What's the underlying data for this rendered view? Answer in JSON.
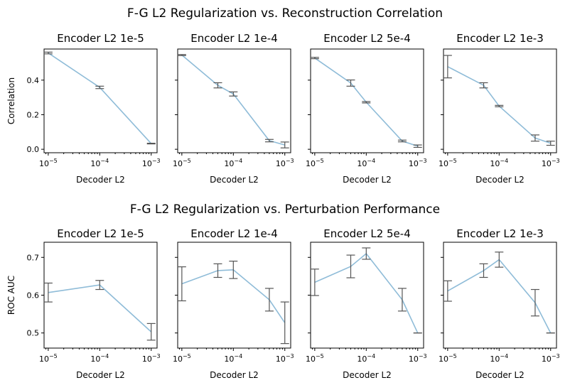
{
  "chart_data": [
    {
      "type": "line",
      "row_title": "F-G L2 Regularization vs. Reconstruction Correlation",
      "xlabel": "Decoder L2",
      "ylabel": "Correlation",
      "xscale": "log",
      "ylim": [
        -0.02,
        0.58
      ],
      "yticks": [
        0.0,
        0.2,
        0.4
      ],
      "ytick_labels": [
        "0.0",
        "0.2",
        "0.4"
      ],
      "xtick_values": [
        1e-05,
        0.0001,
        0.001
      ],
      "grid": false,
      "panels": [
        {
          "title": "Encoder L2 1e-5",
          "x": [
            1e-05,
            0.0001,
            0.001
          ],
          "y": [
            0.557,
            0.358,
            0.033
          ],
          "err": [
            0.005,
            0.007,
            0.002
          ],
          "xlim": [
            8.3e-06,
            0.0013
          ]
        },
        {
          "title": "Encoder L2 1e-4",
          "x": [
            1e-05,
            5e-05,
            0.0001,
            0.0005,
            0.001
          ],
          "y": [
            0.545,
            0.37,
            0.32,
            0.05,
            0.025
          ],
          "err": [
            0.003,
            0.015,
            0.012,
            0.007,
            0.017
          ],
          "xlim": [
            8.3e-06,
            0.0013
          ]
        },
        {
          "title": "Encoder L2 5e-4",
          "x": [
            1e-05,
            5e-05,
            0.0001,
            0.0005,
            0.001
          ],
          "y": [
            0.528,
            0.383,
            0.272,
            0.048,
            0.018
          ],
          "err": [
            0.004,
            0.018,
            0.004,
            0.005,
            0.007
          ],
          "xlim": [
            8.3e-06,
            0.0013
          ]
        },
        {
          "title": "Encoder L2 1e-3",
          "x": [
            1e-05,
            5e-05,
            0.0001,
            0.0005,
            0.001
          ],
          "y": [
            0.478,
            0.37,
            0.25,
            0.065,
            0.035
          ],
          "err": [
            0.065,
            0.015,
            0.004,
            0.018,
            0.012
          ],
          "xlim": [
            8.3e-06,
            0.0013
          ]
        }
      ]
    },
    {
      "type": "line",
      "row_title": "F-G L2 Regularization vs. Perturbation Performance",
      "xlabel": "Decoder L2",
      "ylabel": "ROC AUC",
      "xscale": "log",
      "ylim": [
        0.46,
        0.74
      ],
      "yticks": [
        0.5,
        0.6,
        0.7
      ],
      "ytick_labels": [
        "0.5",
        "0.6",
        "0.7"
      ],
      "xtick_values": [
        1e-05,
        0.0001,
        0.001
      ],
      "grid": false,
      "panels": [
        {
          "title": "Encoder L2 1e-5",
          "x": [
            1e-05,
            0.0001,
            0.001
          ],
          "y": [
            0.607,
            0.627,
            0.503
          ],
          "err": [
            0.025,
            0.012,
            0.022
          ],
          "xlim": [
            8.3e-06,
            0.0013
          ]
        },
        {
          "title": "Encoder L2 1e-4",
          "x": [
            1e-05,
            5e-05,
            0.0001,
            0.0005,
            0.001
          ],
          "y": [
            0.63,
            0.665,
            0.667,
            0.588,
            0.527
          ],
          "err": [
            0.045,
            0.018,
            0.023,
            0.03,
            0.055
          ],
          "xlim": [
            8.3e-06,
            0.0013
          ]
        },
        {
          "title": "Encoder L2 5e-4",
          "x": [
            1e-05,
            5e-05,
            0.0001,
            0.0005,
            0.001
          ],
          "y": [
            0.634,
            0.676,
            0.71,
            0.588,
            0.5
          ],
          "err": [
            0.035,
            0.03,
            0.015,
            0.03,
            0.0
          ],
          "xlim": [
            8.3e-06,
            0.0013
          ]
        },
        {
          "title": "Encoder L2 1e-3",
          "x": [
            1e-05,
            5e-05,
            0.0001,
            0.0005,
            0.001
          ],
          "y": [
            0.611,
            0.665,
            0.694,
            0.58,
            0.5
          ],
          "err": [
            0.027,
            0.018,
            0.02,
            0.035,
            0.0
          ],
          "xlim": [
            8.3e-06,
            0.0013
          ]
        }
      ]
    }
  ]
}
